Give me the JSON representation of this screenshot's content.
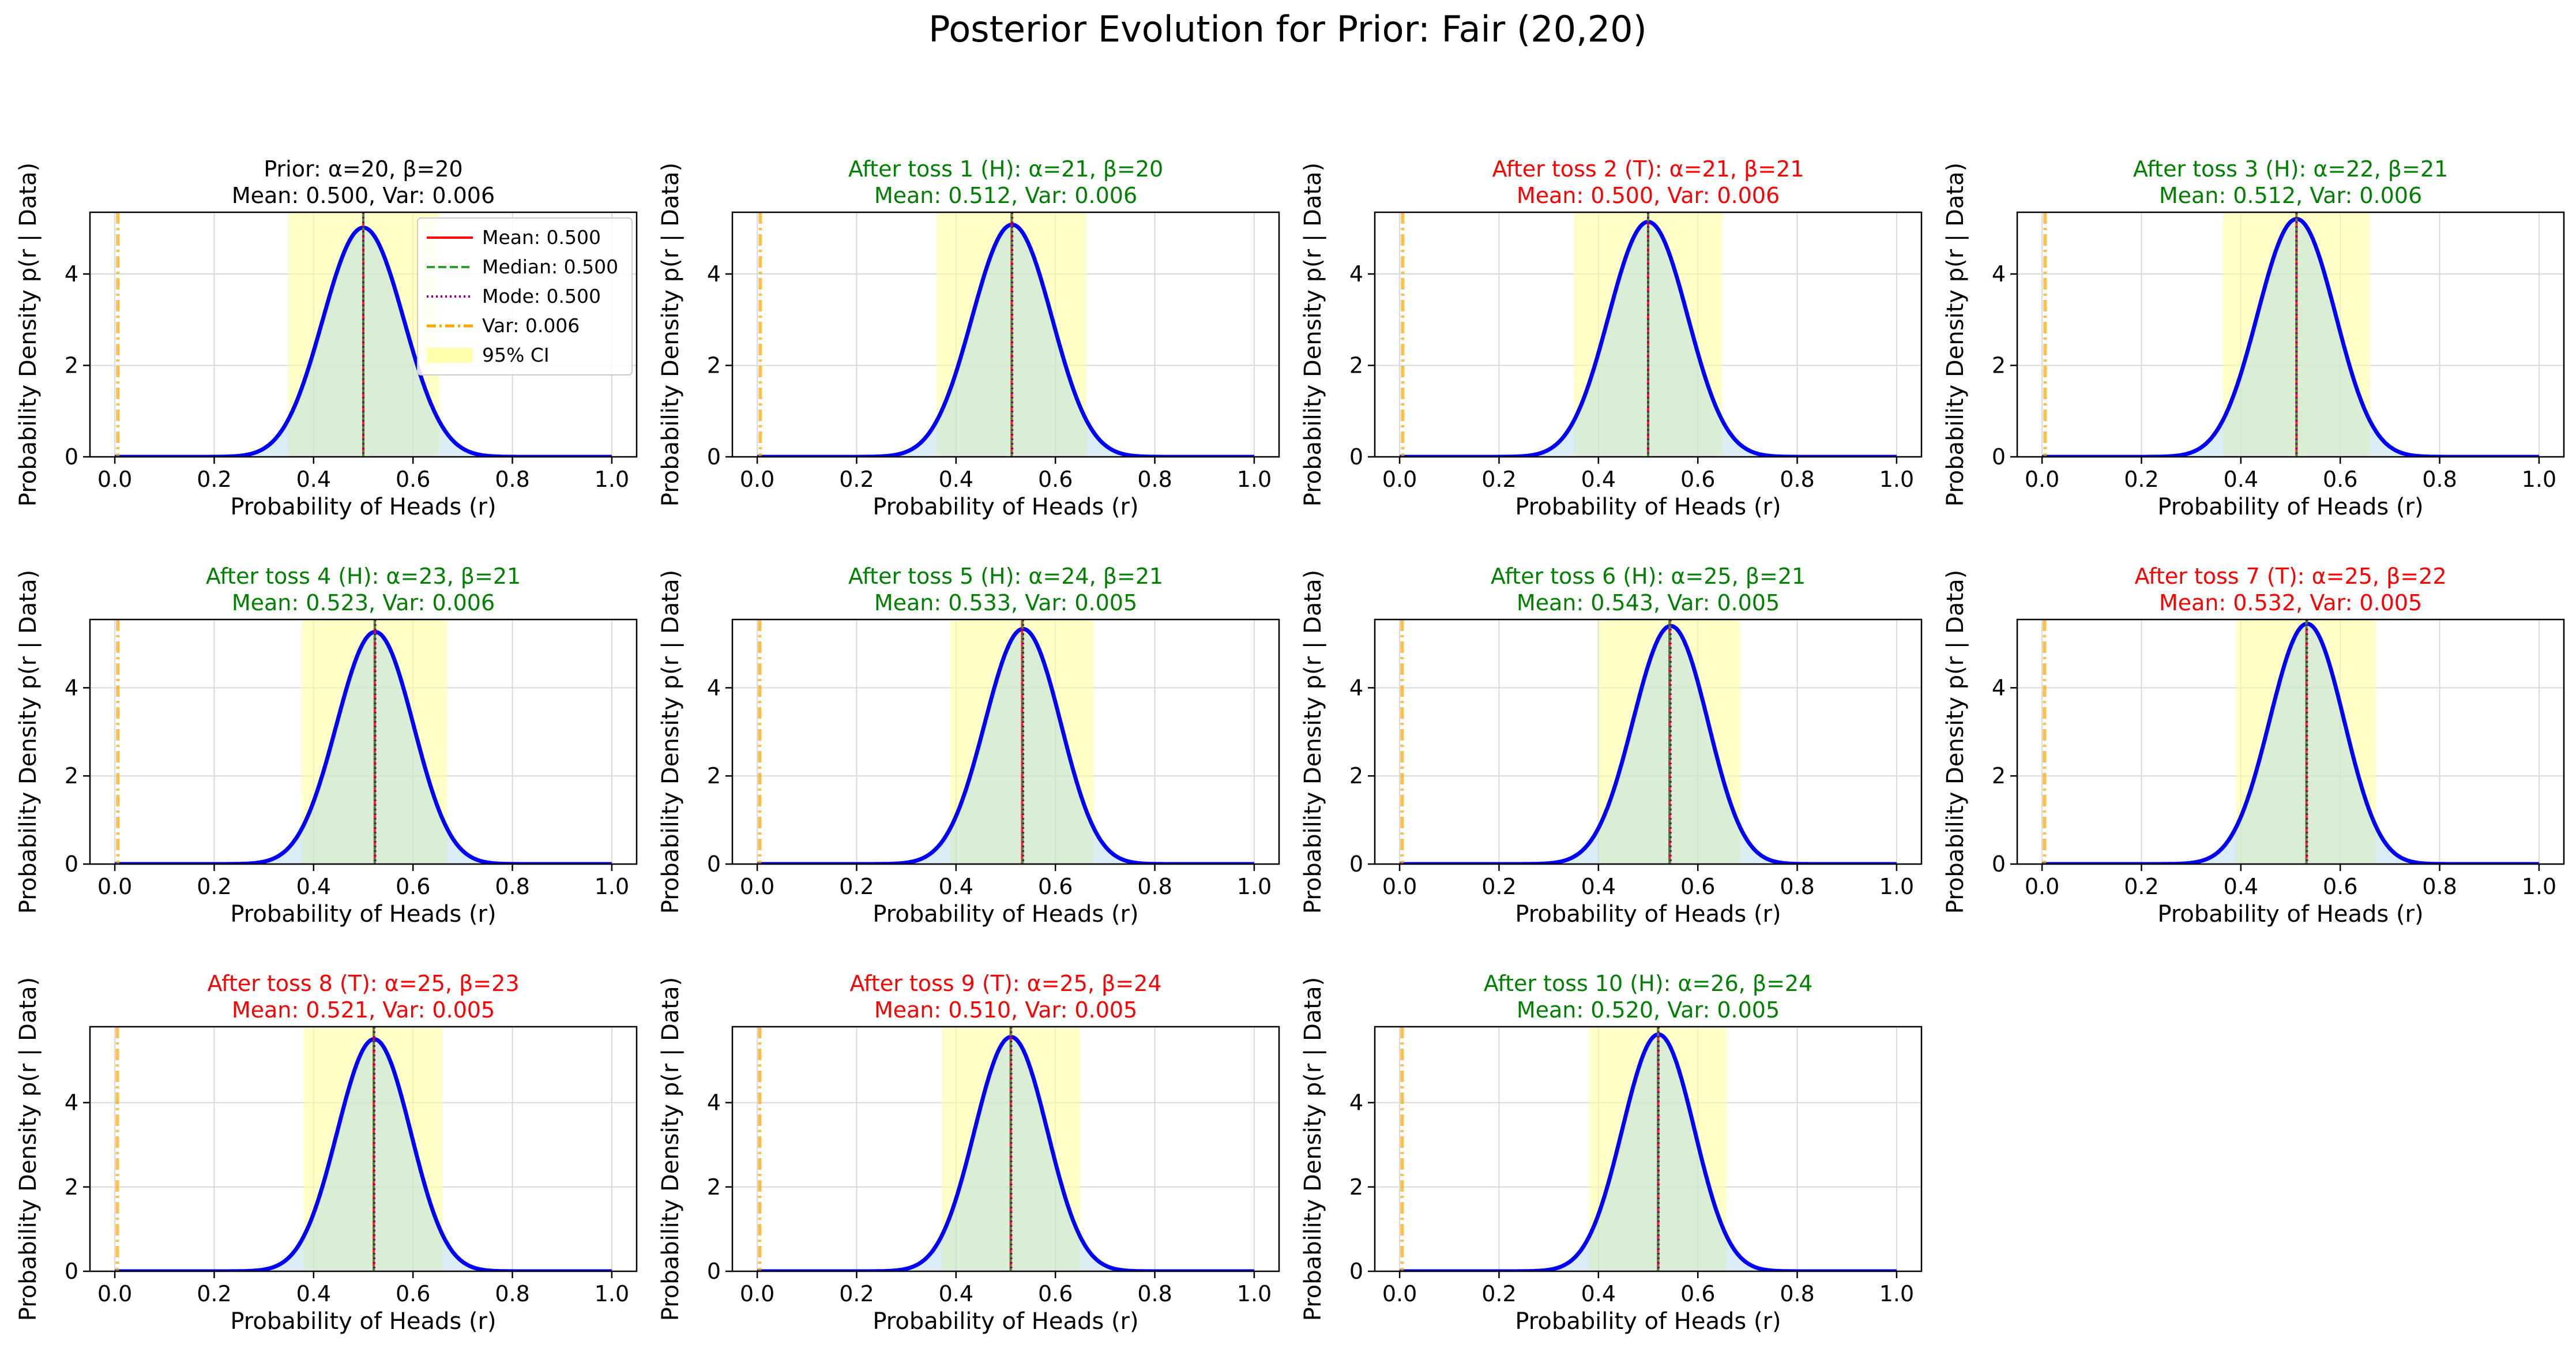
{
  "figure_title": "Posterior Evolution for Prior: Fair (20,20)",
  "colors": {
    "curve": "#0000ff",
    "fill": "#add8e6",
    "ci": "#ffff99",
    "mean": "#ff0000",
    "median": "#2ca02c",
    "mode": "#800080",
    "var": "#ffa500",
    "heads_title": "#008000",
    "tails_title": "#ff0000",
    "prior_title": "#000000",
    "grid": "#d9d9d9"
  },
  "chart_data": [
    {
      "type": "line",
      "title": "Prior: α=20, β=20",
      "subtitle": "Mean: 0.500, Var: 0.006",
      "title_color": "prior",
      "alpha": 20,
      "beta": 20,
      "mean": 0.5,
      "median": 0.5,
      "mode": 0.5,
      "var": 0.006,
      "ci": [
        0.348,
        0.652
      ],
      "xlabel": "Probability of Heads (r)",
      "ylabel": "Probability Density p(r | Data)",
      "xlim": [
        -0.05,
        1.05
      ],
      "ylim": [
        0,
        5.35
      ],
      "xticks": [
        "0.0",
        "0.2",
        "0.4",
        "0.6",
        "0.8",
        "1.0"
      ],
      "yticks": [
        "0",
        "2",
        "4"
      ],
      "legend": {
        "position": "top-right",
        "entries": [
          "Mean: 0.500",
          "Median: 0.500",
          "Mode: 0.500",
          "Var: 0.006",
          "95% CI"
        ]
      }
    },
    {
      "type": "line",
      "title": "After toss 1 (H): α=21, β=20",
      "subtitle": "Mean: 0.512, Var: 0.006",
      "title_color": "heads",
      "alpha": 21,
      "beta": 20,
      "mean": 0.512,
      "median": 0.512,
      "mode": 0.513,
      "var": 0.006,
      "ci": [
        0.361,
        0.662
      ],
      "xlabel": "Probability of Heads (r)",
      "ylabel": "Probability Density p(r | Data)",
      "xlim": [
        -0.05,
        1.05
      ],
      "ylim": [
        0,
        5.35
      ],
      "xticks": [
        "0.0",
        "0.2",
        "0.4",
        "0.6",
        "0.8",
        "1.0"
      ],
      "yticks": [
        "0",
        "2",
        "4"
      ]
    },
    {
      "type": "line",
      "title": "After toss 2 (T): α=21, β=21",
      "subtitle": "Mean: 0.500, Var: 0.006",
      "title_color": "tails",
      "alpha": 21,
      "beta": 21,
      "mean": 0.5,
      "median": 0.5,
      "mode": 0.5,
      "var": 0.006,
      "ci": [
        0.351,
        0.649
      ],
      "xlabel": "Probability of Heads (r)",
      "ylabel": "Probability Density p(r | Data)",
      "xlim": [
        -0.05,
        1.05
      ],
      "ylim": [
        0,
        5.35
      ],
      "xticks": [
        "0.0",
        "0.2",
        "0.4",
        "0.6",
        "0.8",
        "1.0"
      ],
      "yticks": [
        "0",
        "2",
        "4"
      ]
    },
    {
      "type": "line",
      "title": "After toss 3 (H): α=22, β=21",
      "subtitle": "Mean: 0.512, Var: 0.006",
      "title_color": "heads",
      "alpha": 22,
      "beta": 21,
      "mean": 0.512,
      "median": 0.512,
      "mode": 0.512,
      "var": 0.006,
      "ci": [
        0.364,
        0.66
      ],
      "xlabel": "Probability of Heads (r)",
      "ylabel": "Probability Density p(r | Data)",
      "xlim": [
        -0.05,
        1.05
      ],
      "ylim": [
        0,
        5.35
      ],
      "xticks": [
        "0.0",
        "0.2",
        "0.4",
        "0.6",
        "0.8",
        "1.0"
      ],
      "yticks": [
        "0",
        "2",
        "4"
      ]
    },
    {
      "type": "line",
      "title": "After toss 4 (H): α=23, β=21",
      "subtitle": "Mean: 0.523, Var: 0.006",
      "title_color": "heads",
      "alpha": 23,
      "beta": 21,
      "mean": 0.523,
      "median": 0.523,
      "mode": 0.524,
      "var": 0.006,
      "ci": [
        0.376,
        0.668
      ],
      "xlabel": "Probability of Heads (r)",
      "ylabel": "Probability Density p(r | Data)",
      "xlim": [
        -0.05,
        1.05
      ],
      "ylim": [
        0,
        5.55
      ],
      "xticks": [
        "0.0",
        "0.2",
        "0.4",
        "0.6",
        "0.8",
        "1.0"
      ],
      "yticks": [
        "0",
        "2",
        "4"
      ]
    },
    {
      "type": "line",
      "title": "After toss 5 (H): α=24, β=21",
      "subtitle": "Mean: 0.533, Var: 0.005",
      "title_color": "heads",
      "alpha": 24,
      "beta": 21,
      "mean": 0.533,
      "median": 0.534,
      "mode": 0.535,
      "var": 0.005,
      "ci": [
        0.388,
        0.677
      ],
      "xlabel": "Probability of Heads (r)",
      "ylabel": "Probability Density p(r | Data)",
      "xlim": [
        -0.05,
        1.05
      ],
      "ylim": [
        0,
        5.55
      ],
      "xticks": [
        "0.0",
        "0.2",
        "0.4",
        "0.6",
        "0.8",
        "1.0"
      ],
      "yticks": [
        "0",
        "2",
        "4"
      ]
    },
    {
      "type": "line",
      "title": "After toss 6 (H): α=25, β=21",
      "subtitle": "Mean: 0.543, Var: 0.005",
      "title_color": "heads",
      "alpha": 25,
      "beta": 21,
      "mean": 0.543,
      "median": 0.544,
      "mode": 0.545,
      "var": 0.005,
      "ci": [
        0.4,
        0.685
      ],
      "xlabel": "Probability of Heads (r)",
      "ylabel": "Probability Density p(r | Data)",
      "xlim": [
        -0.05,
        1.05
      ],
      "ylim": [
        0,
        5.55
      ],
      "xticks": [
        "0.0",
        "0.2",
        "0.4",
        "0.6",
        "0.8",
        "1.0"
      ],
      "yticks": [
        "0",
        "2",
        "4"
      ]
    },
    {
      "type": "line",
      "title": "After toss 7 (T): α=25, β=22",
      "subtitle": "Mean: 0.532, Var: 0.005",
      "title_color": "tails",
      "alpha": 25,
      "beta": 22,
      "mean": 0.532,
      "median": 0.532,
      "mode": 0.533,
      "var": 0.005,
      "ci": [
        0.39,
        0.672
      ],
      "xlabel": "Probability of Heads (r)",
      "ylabel": "Probability Density p(r | Data)",
      "xlim": [
        -0.05,
        1.05
      ],
      "ylim": [
        0,
        5.55
      ],
      "xticks": [
        "0.0",
        "0.2",
        "0.4",
        "0.6",
        "0.8",
        "1.0"
      ],
      "yticks": [
        "0",
        "2",
        "4"
      ]
    },
    {
      "type": "line",
      "title": "After toss 8 (T): α=25, β=23",
      "subtitle": "Mean: 0.521, Var: 0.005",
      "title_color": "tails",
      "alpha": 25,
      "beta": 23,
      "mean": 0.521,
      "median": 0.521,
      "mode": 0.522,
      "var": 0.005,
      "ci": [
        0.38,
        0.66
      ],
      "xlabel": "Probability of Heads (r)",
      "ylabel": "Probability Density p(r | Data)",
      "xlim": [
        -0.05,
        1.05
      ],
      "ylim": [
        0,
        5.8
      ],
      "xticks": [
        "0.0",
        "0.2",
        "0.4",
        "0.6",
        "0.8",
        "1.0"
      ],
      "yticks": [
        "0",
        "2",
        "4"
      ]
    },
    {
      "type": "line",
      "title": "After toss 9 (T): α=25, β=24",
      "subtitle": "Mean: 0.510, Var: 0.005",
      "title_color": "tails",
      "alpha": 25,
      "beta": 24,
      "mean": 0.51,
      "median": 0.51,
      "mode": 0.511,
      "var": 0.005,
      "ci": [
        0.371,
        0.649
      ],
      "xlabel": "Probability of Heads (r)",
      "ylabel": "Probability Density p(r | Data)",
      "xlim": [
        -0.05,
        1.05
      ],
      "ylim": [
        0,
        5.8
      ],
      "xticks": [
        "0.0",
        "0.2",
        "0.4",
        "0.6",
        "0.8",
        "1.0"
      ],
      "yticks": [
        "0",
        "2",
        "4"
      ]
    },
    {
      "type": "line",
      "title": "After toss 10 (H): α=26, β=24",
      "subtitle": "Mean: 0.520, Var: 0.005",
      "title_color": "heads",
      "alpha": 26,
      "beta": 24,
      "mean": 0.52,
      "median": 0.52,
      "mode": 0.521,
      "var": 0.005,
      "ci": [
        0.382,
        0.657
      ],
      "xlabel": "Probability of Heads (r)",
      "ylabel": "Probability Density p(r | Data)",
      "xlim": [
        -0.05,
        1.05
      ],
      "ylim": [
        0,
        5.8
      ],
      "xticks": [
        "0.0",
        "0.2",
        "0.4",
        "0.6",
        "0.8",
        "1.0"
      ],
      "yticks": [
        "0",
        "2",
        "4"
      ]
    }
  ]
}
